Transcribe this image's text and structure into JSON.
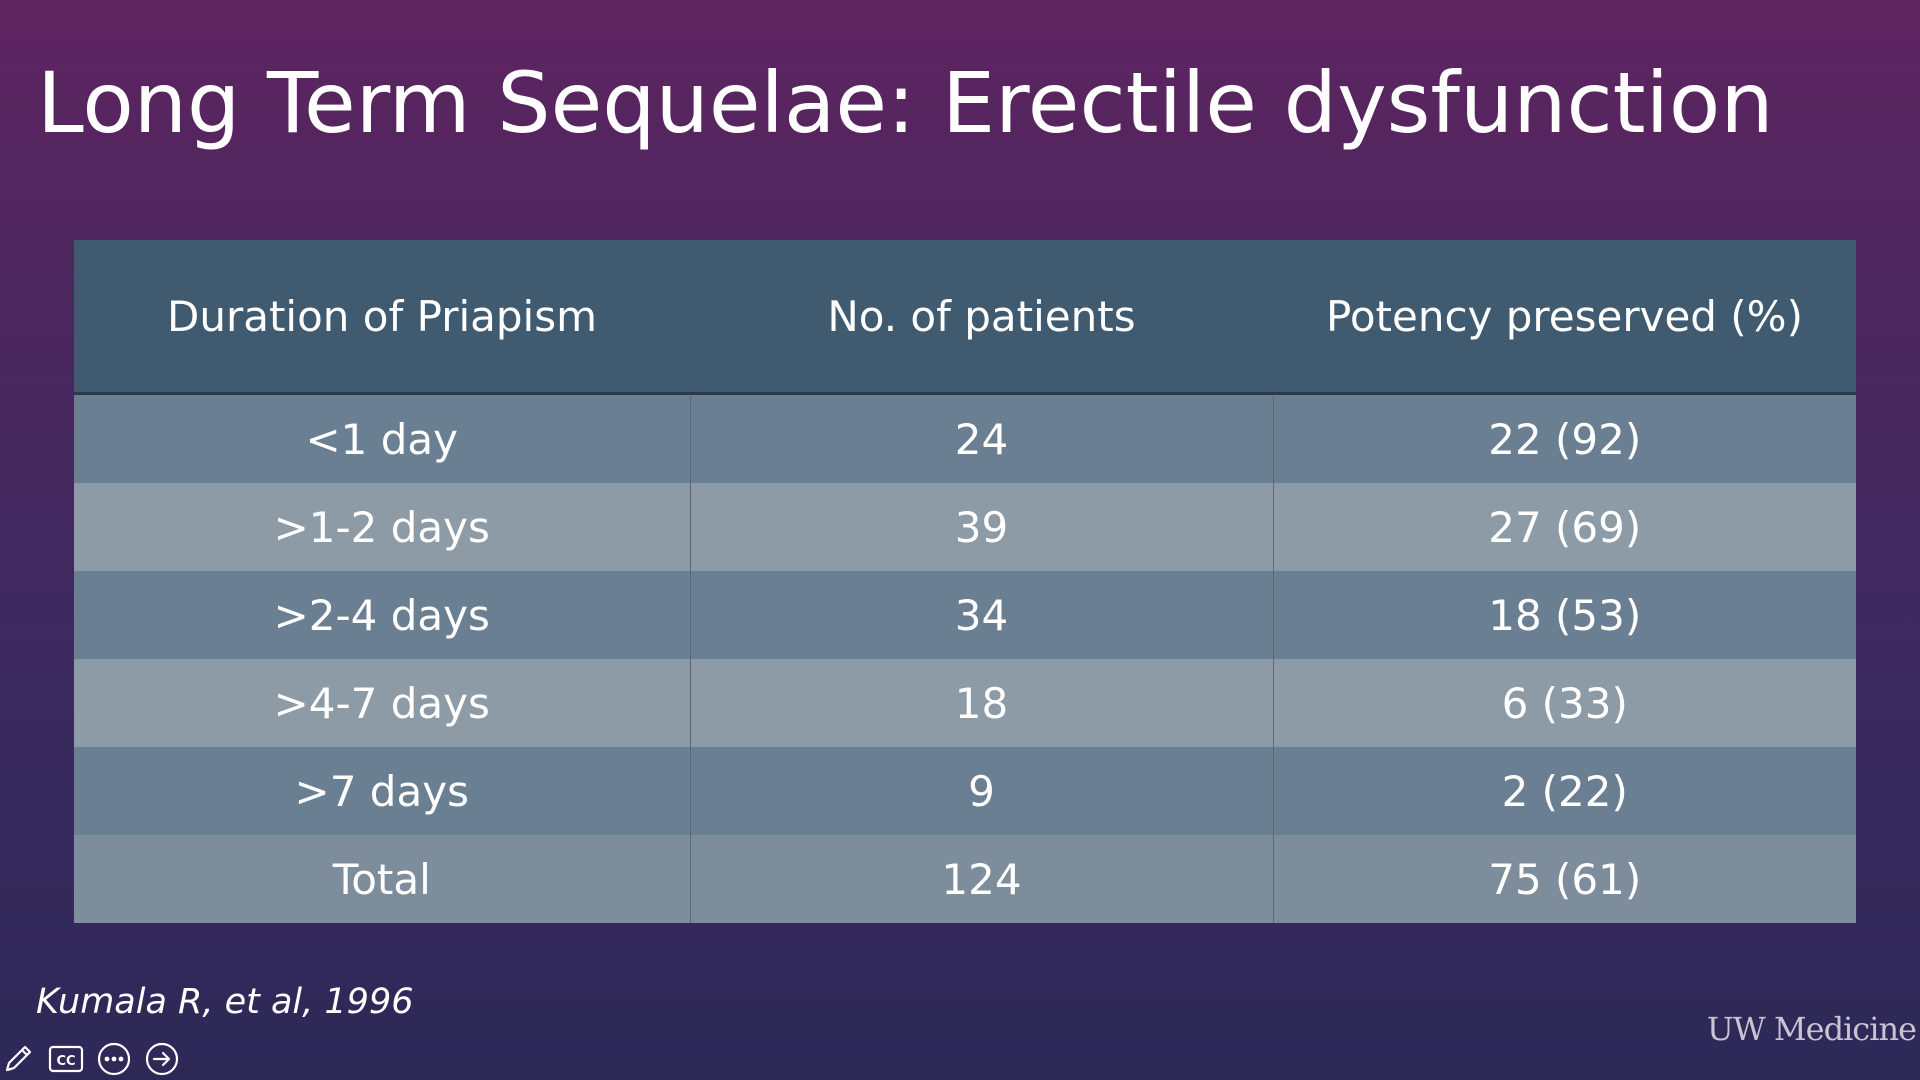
{
  "slide": {
    "title": "Long Term Sequelae:  Erectile dysfunction",
    "citation": "Kumala R, et al, 1996",
    "logo_text": "UW Medicine"
  },
  "table": {
    "headers": [
      "Duration of Priapism",
      "No. of patients",
      "Potency preserved (%)"
    ],
    "rows": [
      [
        "<1 day",
        "24",
        "22 (92)"
      ],
      [
        ">1-2 days",
        "39",
        "27 (69)"
      ],
      [
        ">2-4 days",
        "34",
        "18 (53)"
      ],
      [
        ">4-7 days",
        "18",
        "6 (33)"
      ],
      [
        ">7 days",
        "9",
        "2 (22)"
      ],
      [
        "Total",
        "124",
        "75 (61)"
      ]
    ]
  },
  "controls": {
    "icons": [
      "pen-icon",
      "closed-captions-icon",
      "more-options-icon",
      "next-slide-icon"
    ],
    "cc_label": "CC"
  },
  "colors": {
    "background_top": "#5e2460",
    "background_bottom": "#2d2957",
    "table_header": "#405a6f",
    "row_dark": "#6a7f91",
    "row_light": "#8d9ba7"
  }
}
